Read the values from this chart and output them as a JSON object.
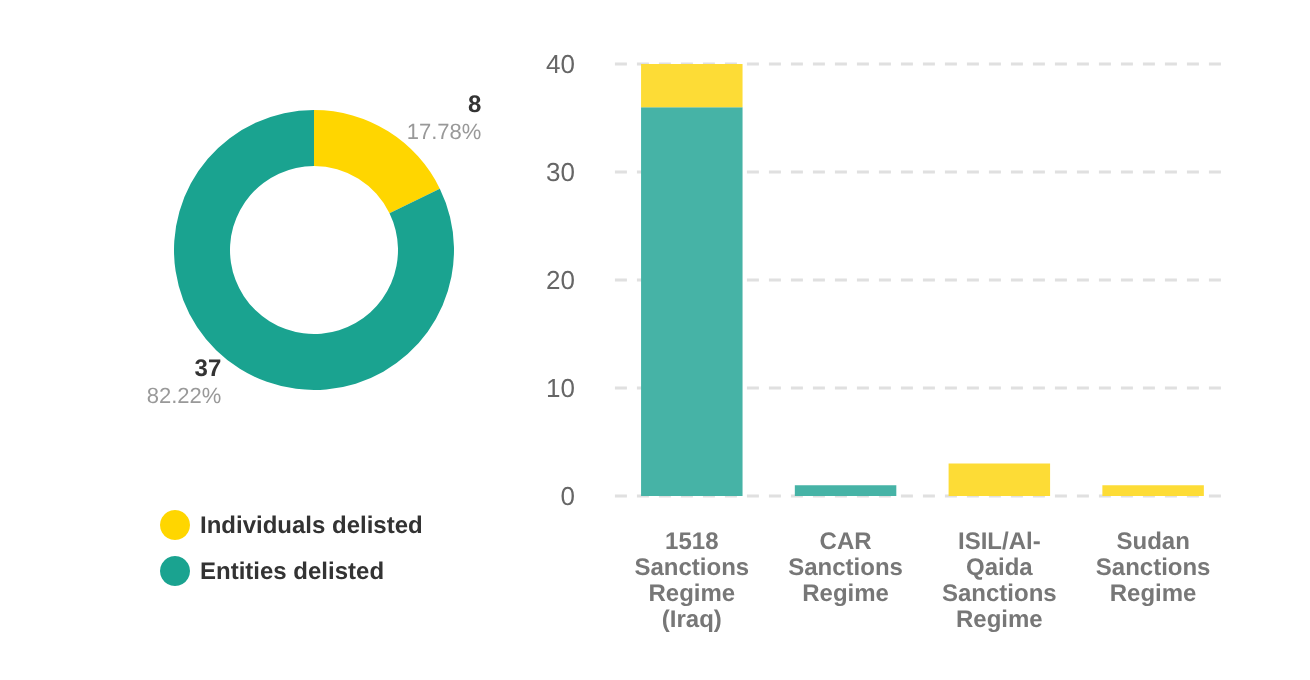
{
  "chart_data": [
    {
      "type": "donut",
      "categories": [
        "Individuals delisted",
        "Entities delisted"
      ],
      "values": [
        8,
        37
      ],
      "colors": [
        "#ffd600",
        "#1aa390"
      ],
      "value_labels": [
        "8\n17.78%",
        "37\n82.22%"
      ],
      "legend": "bottom"
    },
    {
      "type": "bar",
      "categories": [
        "1518\nSanctions\nRegime\n(Iraq)",
        "CAR\nSanctions\nRegime",
        "ISIL/Al-\nQaida\nSanctions\nRegime",
        "Sudan\nSanctions\nRegime"
      ],
      "stacked": true,
      "series": [
        {
          "color": "#46b3a6",
          "values": [
            36,
            1,
            0,
            0
          ]
        },
        {
          "color": "#fddc36",
          "values": [
            4,
            0,
            3,
            1
          ]
        }
      ],
      "ylim": [
        0,
        40
      ],
      "yticks": [
        0,
        10,
        20,
        30,
        40
      ],
      "grid": "y"
    }
  ]
}
